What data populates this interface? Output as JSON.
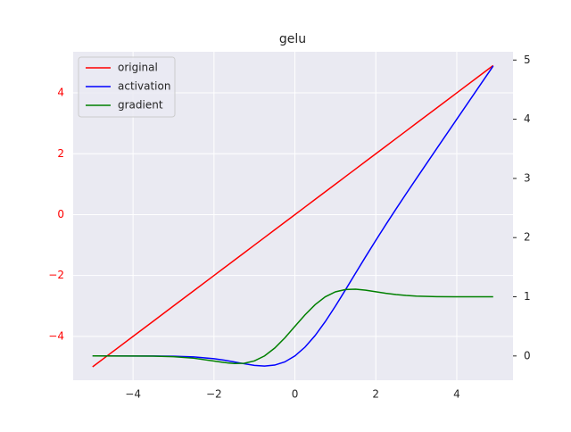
{
  "chart_data": {
    "type": "line",
    "title": "gelu",
    "x": [
      -5,
      -4.5,
      -4,
      -3.5,
      -3,
      -2.5,
      -2,
      -1.75,
      -1.5,
      -1.25,
      -1,
      -0.75,
      -0.5,
      -0.25,
      0,
      0.25,
      0.5,
      0.75,
      1,
      1.25,
      1.5,
      1.75,
      2,
      2.25,
      2.5,
      2.75,
      3,
      3.5,
      4,
      4.5,
      4.9
    ],
    "series": [
      {
        "name": "original",
        "color": "#ff0000",
        "axis": "y",
        "values": [
          -5,
          -4.5,
          -4,
          -3.5,
          -3,
          -2.5,
          -2,
          -1.75,
          -1.5,
          -1.25,
          -1,
          -0.75,
          -0.5,
          -0.25,
          0,
          0.25,
          0.5,
          0.75,
          1,
          1.25,
          1.5,
          1.75,
          2,
          2.25,
          2.5,
          2.75,
          3,
          3.5,
          4,
          4.5,
          4.9
        ]
      },
      {
        "name": "activation",
        "color": "#0000ff",
        "axis": "y2",
        "values": [
          0,
          0,
          -0.0001,
          -0.0008,
          -0.004,
          -0.0155,
          -0.0455,
          -0.0701,
          -0.1002,
          -0.1321,
          -0.1587,
          -0.17,
          -0.1543,
          -0.1003,
          0,
          0.1497,
          0.3457,
          0.58,
          0.8413,
          1.1179,
          1.3998,
          1.6799,
          1.9545,
          2.2225,
          2.4845,
          2.7418,
          2.996,
          3.4992,
          3.9999,
          4.5,
          4.9
        ]
      },
      {
        "name": "gradient",
        "color": "#008000",
        "axis": "y2",
        "values": [
          0,
          -0.0001,
          -0.0005,
          -0.0028,
          -0.0119,
          -0.0376,
          -0.0852,
          -0.1109,
          -0.1275,
          -0.1227,
          -0.0833,
          0.0008,
          0.1325,
          0.3046,
          0.5,
          0.6954,
          0.8675,
          0.9992,
          1.0833,
          1.1227,
          1.1275,
          1.1109,
          1.0852,
          1.0592,
          1.0376,
          1.022,
          1.0119,
          1.0028,
          1.0005,
          1.0001,
          1
        ]
      }
    ],
    "xlim": [
      -5.48,
      5.39
    ],
    "xticks": [
      {
        "value": -4,
        "label": "−4"
      },
      {
        "value": -2,
        "label": "−2"
      },
      0,
      2,
      4
    ],
    "ylim": [
      -5.44,
      5.35
    ],
    "yticks": [
      {
        "value": -4,
        "label": "−4"
      },
      {
        "value": -2,
        "label": "−2"
      },
      0,
      2,
      4
    ],
    "y_tick_color": "#ff0000",
    "y2lim": [
      -0.41,
      5.14
    ],
    "y2ticks": [
      0,
      1,
      2,
      3,
      4,
      5
    ],
    "grid": true,
    "legend": "upper left",
    "background": "#eaeaf2"
  }
}
